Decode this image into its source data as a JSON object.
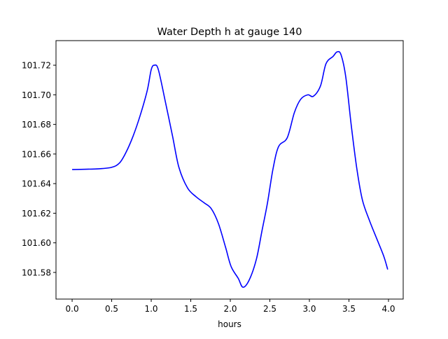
{
  "chart_data": {
    "type": "line",
    "title": "Water Depth h at gauge 140",
    "xlabel": "hours",
    "ylabel": "",
    "xlim": [
      -0.204,
      4.186
    ],
    "ylim": [
      101.562,
      101.7366
    ],
    "xticks": [
      0.0,
      0.5,
      1.0,
      1.5,
      2.0,
      2.5,
      3.0,
      3.5,
      4.0
    ],
    "xtick_labels": [
      "0.0",
      "0.5",
      "1.0",
      "1.5",
      "2.0",
      "2.5",
      "3.0",
      "3.5",
      "4.0"
    ],
    "yticks": [
      101.58,
      101.6,
      101.62,
      101.64,
      101.66,
      101.68,
      101.7,
      101.72
    ],
    "ytick_labels": [
      "101.58",
      "101.60",
      "101.62",
      "101.64",
      "101.66",
      "101.68",
      "101.70",
      "101.72"
    ],
    "grid": false,
    "series": [
      {
        "name": "h",
        "color": "#0000ff",
        "x": [
          0,
          0.33,
          0.5,
          0.6,
          0.68,
          0.77,
          0.86,
          0.95,
          1.0,
          1.04,
          1.09,
          1.18,
          1.27,
          1.35,
          1.46,
          1.57,
          1.67,
          1.76,
          1.85,
          1.94,
          2.01,
          2.1,
          2.16,
          2.24,
          2.33,
          2.4,
          2.47,
          2.54,
          2.61,
          2.72,
          2.81,
          2.89,
          2.98,
          3.05,
          3.14,
          3.21,
          3.3,
          3.35,
          3.4,
          3.46,
          3.53,
          3.6,
          3.67,
          3.76,
          3.85,
          3.94,
          3.99
        ],
        "y": [
          101.6495,
          101.65,
          101.651,
          101.654,
          101.661,
          101.672,
          101.686,
          101.703,
          101.717,
          101.72,
          101.717,
          101.695,
          101.672,
          101.651,
          101.637,
          101.631,
          101.627,
          101.623,
          101.613,
          101.597,
          101.584,
          101.576,
          101.57,
          101.575,
          101.589,
          101.608,
          101.627,
          101.65,
          101.665,
          101.671,
          101.688,
          101.697,
          101.7,
          101.699,
          101.706,
          101.721,
          101.726,
          101.729,
          101.727,
          101.712,
          101.679,
          101.65,
          101.629,
          101.615,
          101.603,
          101.591,
          101.582
        ]
      }
    ]
  }
}
